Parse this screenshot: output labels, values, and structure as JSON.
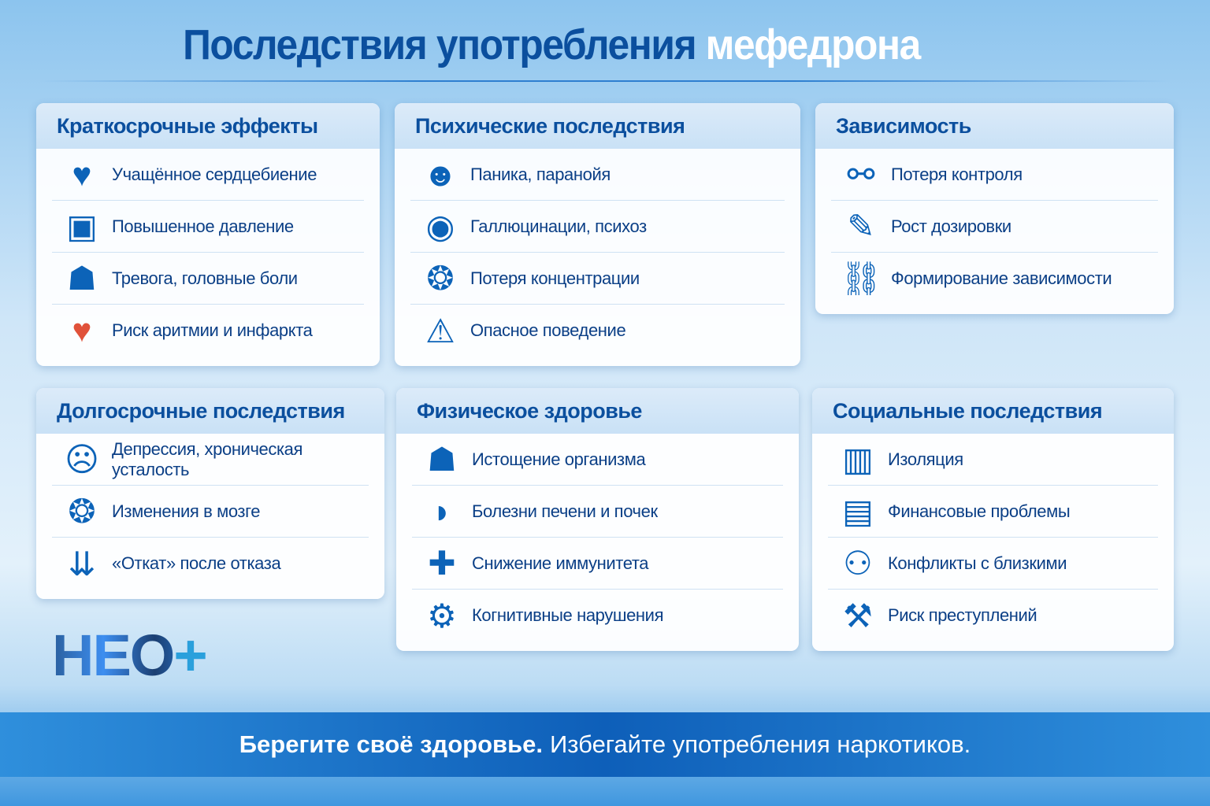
{
  "title": {
    "main": "Последствия употребления",
    "highlight": "мефедрона"
  },
  "panels": [
    {
      "title": "Краткосрочные эффекты",
      "items": [
        {
          "label": "Учащённое сердцебиение",
          "icon": "heart-pulse-icon"
        },
        {
          "label": "Повышенное давление",
          "icon": "blood-pressure-monitor-icon"
        },
        {
          "label": "Тревога, головные боли",
          "icon": "headache-person-icon"
        },
        {
          "label": "Риск аритмии и инфаркта",
          "icon": "red-heart-pulse-icon"
        }
      ]
    },
    {
      "title": "Психические последствия",
      "items": [
        {
          "label": "Паника, паранойя",
          "icon": "panic-person-icon"
        },
        {
          "label": "Галлюцинации, психоз",
          "icon": "head-globe-icon"
        },
        {
          "label": "Потеря концентрации",
          "icon": "brain-icon"
        },
        {
          "label": "Опасное поведение",
          "icon": "warning-icon"
        }
      ]
    },
    {
      "title": "Зависимость",
      "items": [
        {
          "label": "Потеря контроля",
          "icon": "handcuffs-icon"
        },
        {
          "label": "Рост дозировки",
          "icon": "syringe-icon"
        },
        {
          "label": "Формирование зависимости",
          "icon": "chain-icon"
        }
      ]
    },
    {
      "title": "Долгосрочные последствия",
      "items": [
        {
          "label": "Депрессия, хроническая усталость",
          "icon": "sad-face-icon"
        },
        {
          "label": "Изменения в мозге",
          "icon": "brain-head-icon"
        },
        {
          "label": "«Откат» после отказа",
          "icon": "down-arrows-icon"
        }
      ]
    },
    {
      "title": "Физическое здоровье",
      "items": [
        {
          "label": "Истощение организма",
          "icon": "person-icon"
        },
        {
          "label": "Болезни печени и почек",
          "icon": "liver-icon"
        },
        {
          "label": "Снижение иммунитета",
          "icon": "shield-cross-icon"
        },
        {
          "label": "Когнитивные нарушения",
          "icon": "head-gears-icon"
        }
      ]
    },
    {
      "title": "Социальные последствия",
      "items": [
        {
          "label": "Изоляция",
          "icon": "person-behind-bars-icon"
        },
        {
          "label": "Финансовые проблемы",
          "icon": "wallet-icon"
        },
        {
          "label": "Конфликты с близкими",
          "icon": "conflict-people-icon"
        },
        {
          "label": "Риск преступлений",
          "icon": "gavel-icon"
        }
      ]
    }
  ],
  "logo": {
    "text": "НЕО",
    "plus": "+"
  },
  "banner": {
    "bold": "Берегите своё здоровье.",
    "rest": "Избегайте употребления наркотиков."
  },
  "colors": {
    "title": "#0b4f9e",
    "accent": "#0c63b8",
    "banner": "#0e5fb9"
  }
}
